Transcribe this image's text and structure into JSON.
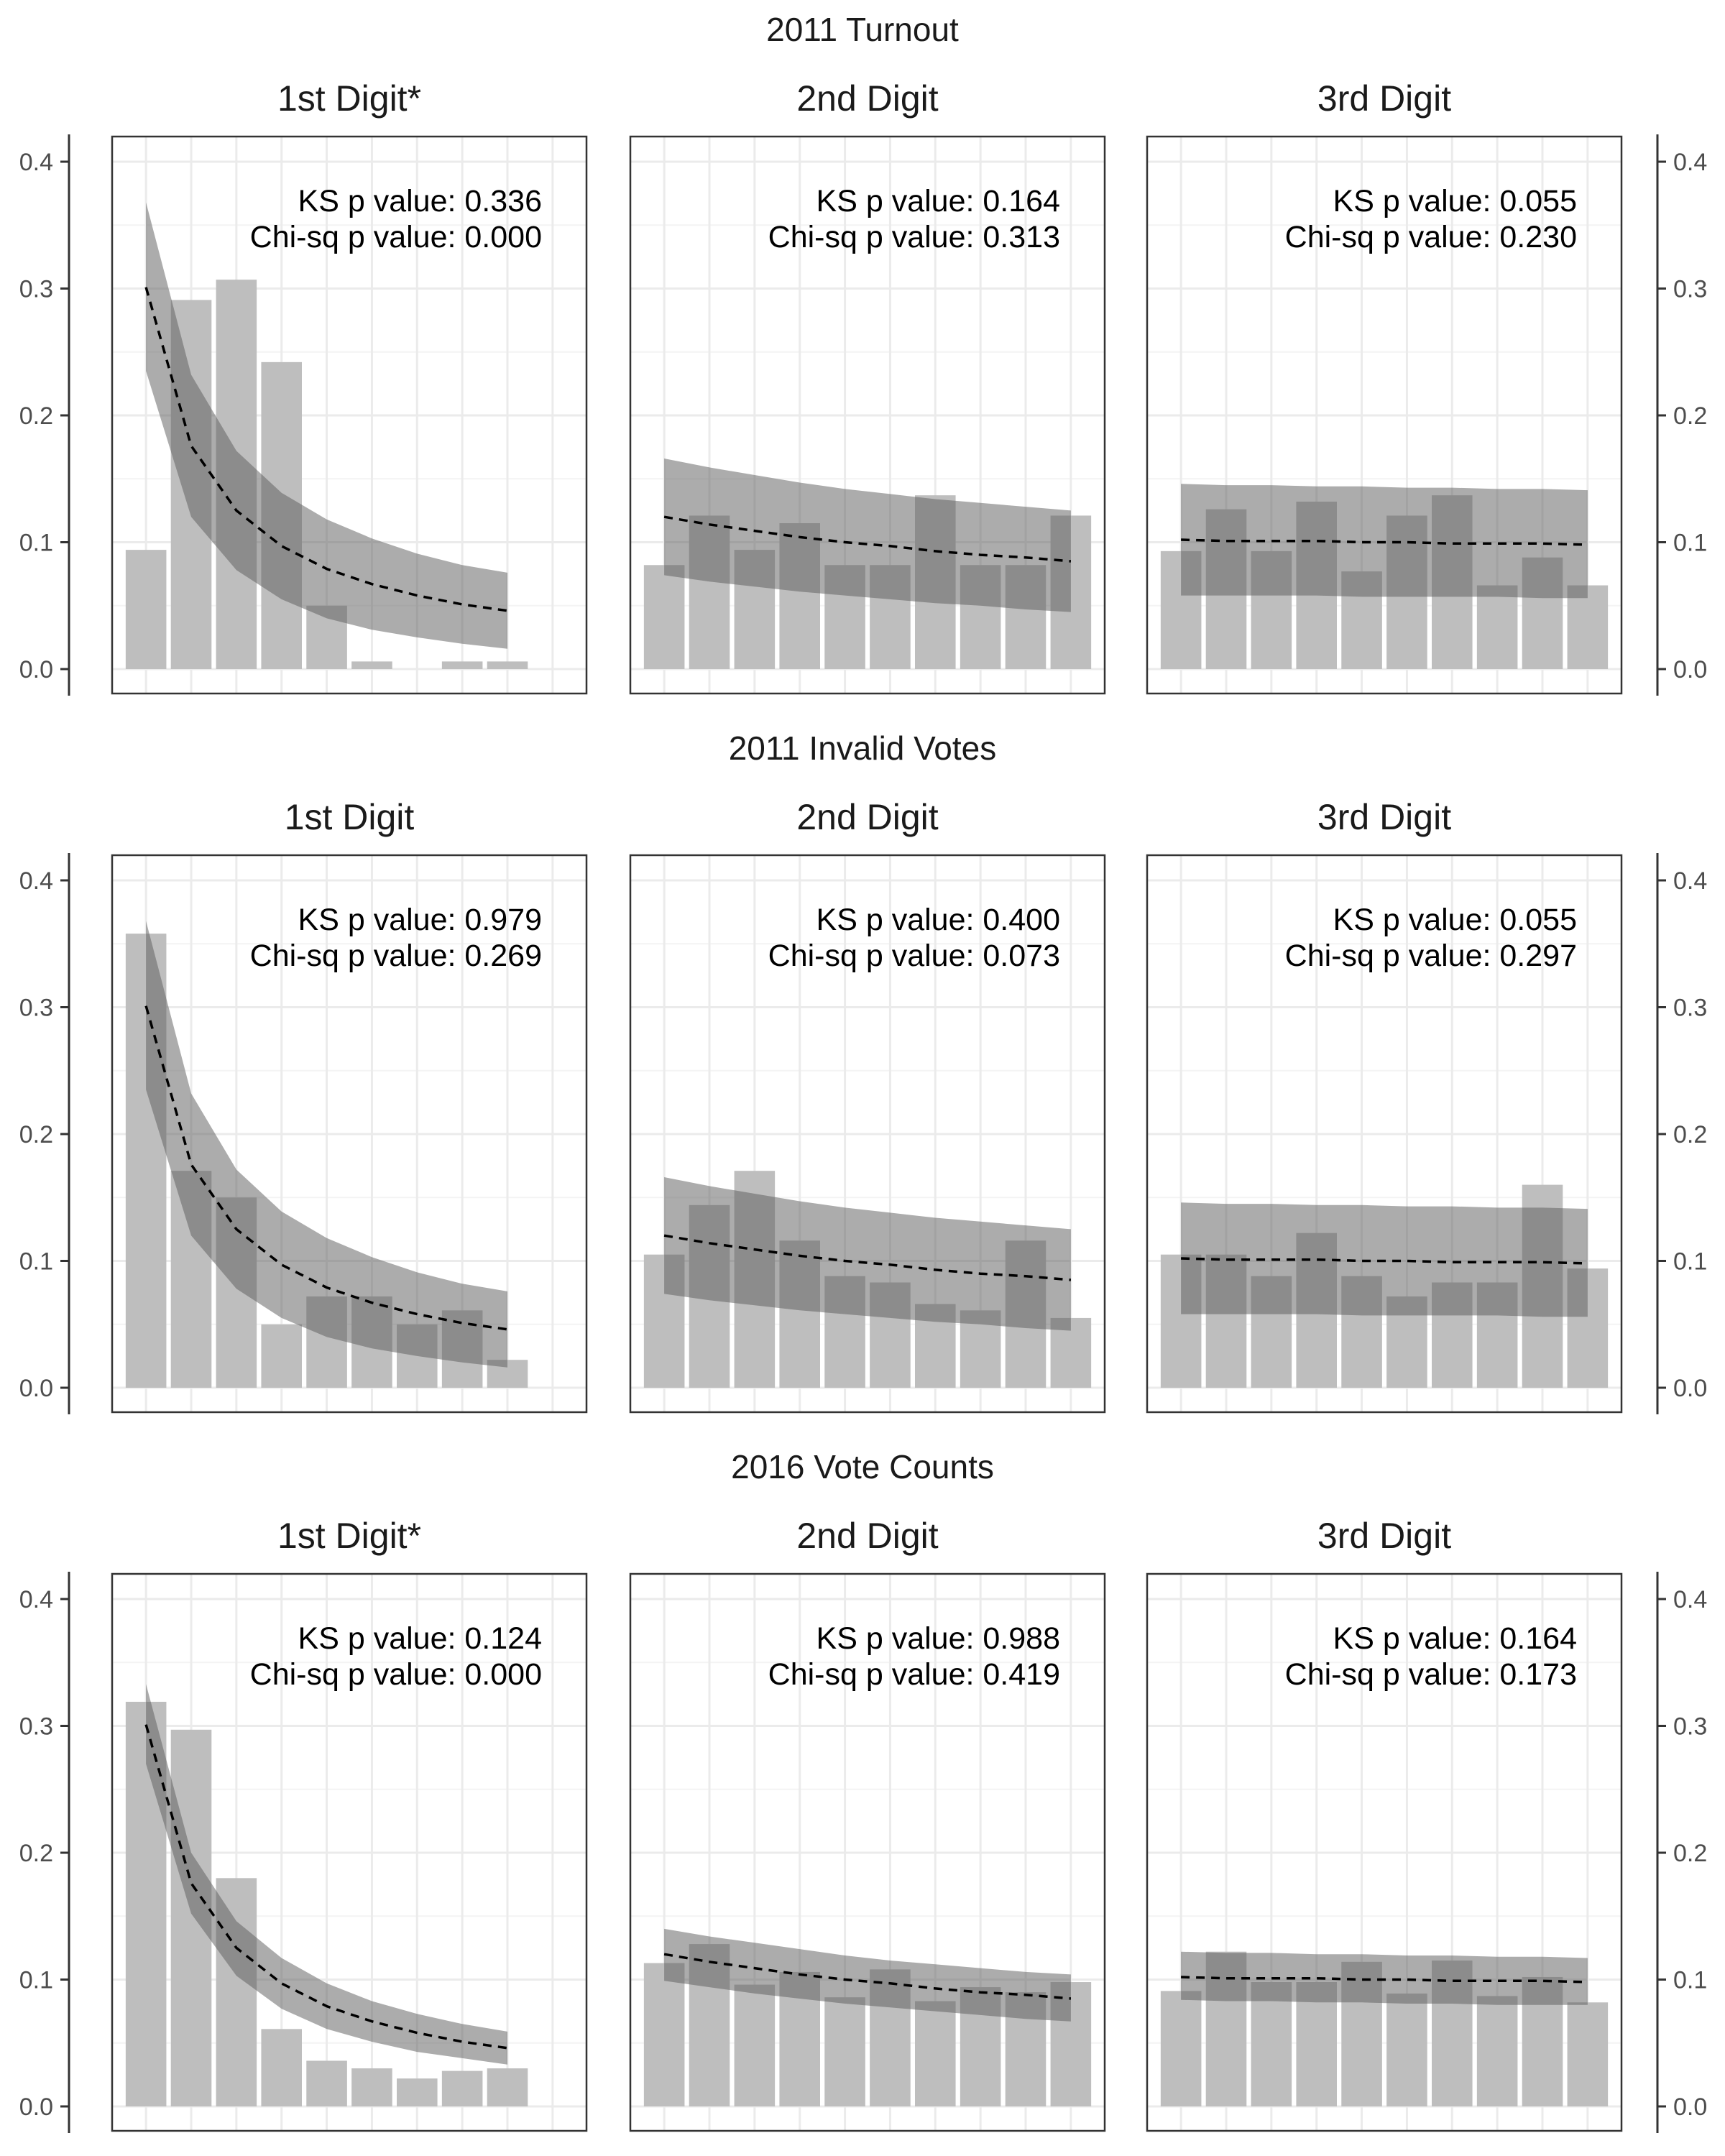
{
  "chart_data": {
    "type": "bar",
    "layout": "3 rows x 3 columns of panels; left y-axis on first column, right y-axis on last column",
    "ylim": [
      0,
      0.42
    ],
    "yticks": [
      "0.0",
      "0.1",
      "0.2",
      "0.3",
      "0.4"
    ],
    "x_positions": 10,
    "grid": true,
    "overlay": "dashed expected-frequency line with shaded band",
    "rows": [
      {
        "title": "2011 Turnout",
        "panels": [
          {
            "title": "1st Digit*",
            "ks_label": "KS p value: 0.336",
            "chi_label": "Chi-sq p value: 0.000",
            "bars": [
              0.094,
              0.291,
              0.307,
              0.242,
              0.05,
              0.006,
              0,
              0.006,
              0.006
            ],
            "expected": [
              0.301,
              0.176,
              0.125,
              0.097,
              0.079,
              0.067,
              0.058,
              0.051,
              0.046
            ],
            "lower": [
              0.235,
              0.12,
              0.078,
              0.055,
              0.04,
              0.031,
              0.025,
              0.02,
              0.016
            ],
            "upper": [
              0.368,
              0.232,
              0.172,
              0.139,
              0.118,
              0.103,
              0.091,
              0.082,
              0.076
            ]
          },
          {
            "title": "2nd Digit",
            "ks_label": "KS p value: 0.164",
            "chi_label": "Chi-sq p value: 0.313",
            "bars": [
              0.082,
              0.121,
              0.094,
              0.115,
              0.082,
              0.082,
              0.137,
              0.082,
              0.082,
              0.121
            ],
            "expected": [
              0.12,
              0.114,
              0.109,
              0.104,
              0.1,
              0.097,
              0.093,
              0.09,
              0.088,
              0.085
            ],
            "lower": [
              0.074,
              0.069,
              0.065,
              0.061,
              0.058,
              0.055,
              0.052,
              0.05,
              0.047,
              0.045
            ],
            "upper": [
              0.166,
              0.159,
              0.153,
              0.147,
              0.142,
              0.138,
              0.134,
              0.131,
              0.128,
              0.125
            ]
          },
          {
            "title": "3rd Digit",
            "ks_label": "KS p value: 0.055",
            "chi_label": "Chi-sq p value: 0.230",
            "bars": [
              0.093,
              0.126,
              0.093,
              0.132,
              0.077,
              0.121,
              0.137,
              0.066,
              0.088,
              0.066
            ],
            "expected": [
              0.102,
              0.101,
              0.101,
              0.101,
              0.1,
              0.1,
              0.099,
              0.099,
              0.099,
              0.098
            ],
            "lower": [
              0.058,
              0.058,
              0.058,
              0.058,
              0.057,
              0.057,
              0.057,
              0.057,
              0.056,
              0.056
            ],
            "upper": [
              0.146,
              0.145,
              0.145,
              0.144,
              0.144,
              0.143,
              0.143,
              0.142,
              0.142,
              0.141
            ]
          }
        ]
      },
      {
        "title": "2011 Invalid Votes",
        "panels": [
          {
            "title": "1st Digit",
            "ks_label": "KS p value: 0.979",
            "chi_label": "Chi-sq p value: 0.269",
            "bars": [
              0.358,
              0.171,
              0.15,
              0.05,
              0.072,
              0.072,
              0.05,
              0.061,
              0.022
            ],
            "expected": [
              0.301,
              0.176,
              0.125,
              0.097,
              0.079,
              0.067,
              0.058,
              0.051,
              0.046
            ],
            "lower": [
              0.235,
              0.12,
              0.078,
              0.055,
              0.04,
              0.031,
              0.025,
              0.02,
              0.016
            ],
            "upper": [
              0.368,
              0.232,
              0.172,
              0.139,
              0.118,
              0.103,
              0.091,
              0.082,
              0.076
            ]
          },
          {
            "title": "2nd Digit",
            "ks_label": "KS p value: 0.400",
            "chi_label": "Chi-sq p value: 0.073",
            "bars": [
              0.105,
              0.144,
              0.171,
              0.116,
              0.088,
              0.083,
              0.066,
              0.061,
              0.116,
              0.055
            ],
            "expected": [
              0.12,
              0.114,
              0.109,
              0.104,
              0.1,
              0.097,
              0.093,
              0.09,
              0.088,
              0.085
            ],
            "lower": [
              0.074,
              0.069,
              0.065,
              0.061,
              0.058,
              0.055,
              0.052,
              0.05,
              0.047,
              0.045
            ],
            "upper": [
              0.166,
              0.159,
              0.153,
              0.147,
              0.142,
              0.138,
              0.134,
              0.131,
              0.128,
              0.125
            ]
          },
          {
            "title": "3rd Digit",
            "ks_label": "KS p value: 0.055",
            "chi_label": "Chi-sq p value: 0.297",
            "bars": [
              0.105,
              0.105,
              0.088,
              0.122,
              0.088,
              0.072,
              0.083,
              0.083,
              0.16,
              0.094
            ],
            "expected": [
              0.102,
              0.101,
              0.101,
              0.101,
              0.1,
              0.1,
              0.099,
              0.099,
              0.099,
              0.098
            ],
            "lower": [
              0.058,
              0.058,
              0.058,
              0.058,
              0.057,
              0.057,
              0.057,
              0.057,
              0.056,
              0.056
            ],
            "upper": [
              0.146,
              0.145,
              0.145,
              0.144,
              0.144,
              0.143,
              0.143,
              0.142,
              0.142,
              0.141
            ]
          }
        ]
      },
      {
        "title": "2016 Vote Counts",
        "panels": [
          {
            "title": "1st Digit*",
            "ks_label": "KS p value: 0.124",
            "chi_label": "Chi-sq p value: 0.000",
            "bars": [
              0.319,
              0.297,
              0.18,
              0.061,
              0.036,
              0.03,
              0.022,
              0.028,
              0.03
            ],
            "expected": [
              0.301,
              0.176,
              0.125,
              0.097,
              0.079,
              0.067,
              0.058,
              0.051,
              0.046
            ],
            "lower": [
              0.27,
              0.152,
              0.103,
              0.077,
              0.061,
              0.051,
              0.043,
              0.038,
              0.033
            ],
            "upper": [
              0.333,
              0.2,
              0.146,
              0.117,
              0.097,
              0.083,
              0.073,
              0.065,
              0.059
            ]
          },
          {
            "title": "2nd Digit",
            "ks_label": "KS p value: 0.988",
            "chi_label": "Chi-sq p value: 0.419",
            "bars": [
              0.113,
              0.128,
              0.096,
              0.106,
              0.086,
              0.108,
              0.083,
              0.094,
              0.09,
              0.098
            ],
            "expected": [
              0.12,
              0.114,
              0.109,
              0.104,
              0.1,
              0.097,
              0.093,
              0.09,
              0.088,
              0.085
            ],
            "lower": [
              0.099,
              0.094,
              0.089,
              0.085,
              0.081,
              0.078,
              0.075,
              0.072,
              0.069,
              0.067
            ],
            "upper": [
              0.14,
              0.134,
              0.129,
              0.124,
              0.119,
              0.115,
              0.112,
              0.109,
              0.106,
              0.104
            ]
          },
          {
            "title": "3rd Digit",
            "ks_label": "KS p value: 0.164",
            "chi_label": "Chi-sq p value: 0.173",
            "bars": [
              0.091,
              0.122,
              0.098,
              0.098,
              0.114,
              0.089,
              0.115,
              0.087,
              0.102,
              0.082
            ],
            "expected": [
              0.102,
              0.101,
              0.101,
              0.101,
              0.1,
              0.1,
              0.099,
              0.099,
              0.099,
              0.098
            ],
            "lower": [
              0.084,
              0.083,
              0.083,
              0.082,
              0.082,
              0.081,
              0.081,
              0.08,
              0.08,
              0.08
            ],
            "upper": [
              0.122,
              0.121,
              0.121,
              0.12,
              0.12,
              0.119,
              0.119,
              0.118,
              0.118,
              0.117
            ]
          }
        ]
      }
    ]
  },
  "colors": {
    "bar": "#bebebe",
    "band": "#595959",
    "band_opacity": 0.5,
    "line": "#000000",
    "grid_major": "#ebebeb",
    "grid_minor": "#f4f4f4",
    "panel_border": "#333333",
    "tick_text": "#4d4d4d"
  }
}
